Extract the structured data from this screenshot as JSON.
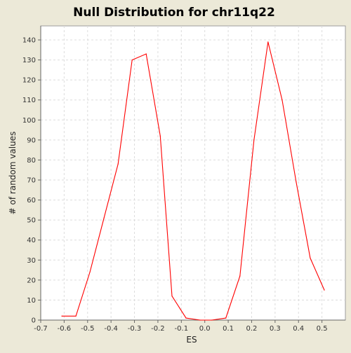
{
  "chart_data": {
    "type": "line",
    "title": "Null Distribution for chr11q22",
    "xlabel": "ES",
    "ylabel": "# of random values",
    "xlim": [
      -0.7,
      0.6
    ],
    "ylim": [
      0,
      147
    ],
    "x_ticks": [
      "-0.7",
      "-0.6",
      "-0.5",
      "-0.4",
      "-0.3",
      "-0.2",
      "-0.1",
      "0.0",
      "0.1",
      "0.2",
      "0.3",
      "0.4",
      "0.5"
    ],
    "y_ticks": [
      "0",
      "10",
      "20",
      "30",
      "40",
      "50",
      "60",
      "70",
      "80",
      "90",
      "100",
      "110",
      "120",
      "130",
      "140"
    ],
    "grid": true,
    "series": [
      {
        "color": "#ff0000",
        "x": [
          -0.61,
          -0.55,
          -0.49,
          -0.43,
          -0.37,
          -0.31,
          -0.25,
          -0.19,
          -0.14,
          -0.08,
          -0.02,
          0.03,
          0.09,
          0.15,
          0.21,
          0.27,
          0.33,
          0.39,
          0.45,
          0.51
        ],
        "y": [
          2,
          2,
          24,
          51,
          78,
          130,
          133,
          92,
          12,
          1,
          0,
          0,
          1,
          22,
          90,
          139,
          110,
          69,
          31,
          15
        ]
      }
    ]
  }
}
